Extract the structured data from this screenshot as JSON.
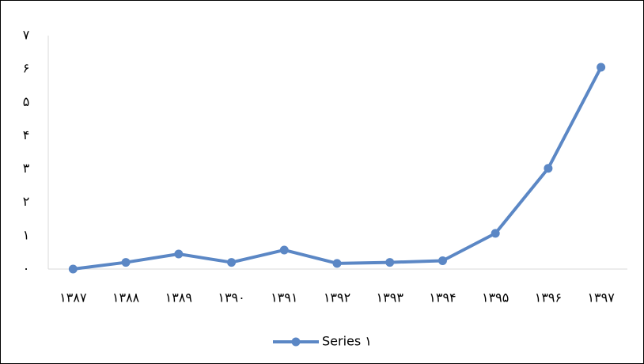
{
  "chart_data": {
    "type": "line",
    "categories": [
      "۱۳۸۷",
      "۱۳۸۸",
      "۱۳۸۹",
      "۱۳۹۰",
      "۱۳۹۱",
      "۱۳۹۲",
      "۱۳۹۳",
      "۱۳۹۴",
      "۱۳۹۵",
      "۱۳۹۶",
      "۱۳۹۷"
    ],
    "series": [
      {
        "name": "Series ۱",
        "color": "#5b87c5",
        "values": [
          0,
          0.2,
          0.45,
          0.2,
          0.57,
          0.17,
          0.2,
          0.25,
          1.07,
          3.02,
          6.05
        ]
      }
    ],
    "ylim": [
      0,
      7
    ],
    "yticks": [
      {
        "value": 0,
        "label": "۰"
      },
      {
        "value": 1,
        "label": "۱"
      },
      {
        "value": 2,
        "label": "۲"
      },
      {
        "value": 3,
        "label": "۳"
      },
      {
        "value": 4,
        "label": "۴"
      },
      {
        "value": 5,
        "label": "۵"
      },
      {
        "value": 6,
        "label": "۶"
      },
      {
        "value": 7,
        "label": "۷"
      }
    ],
    "grid": false,
    "legend": "bottom"
  }
}
